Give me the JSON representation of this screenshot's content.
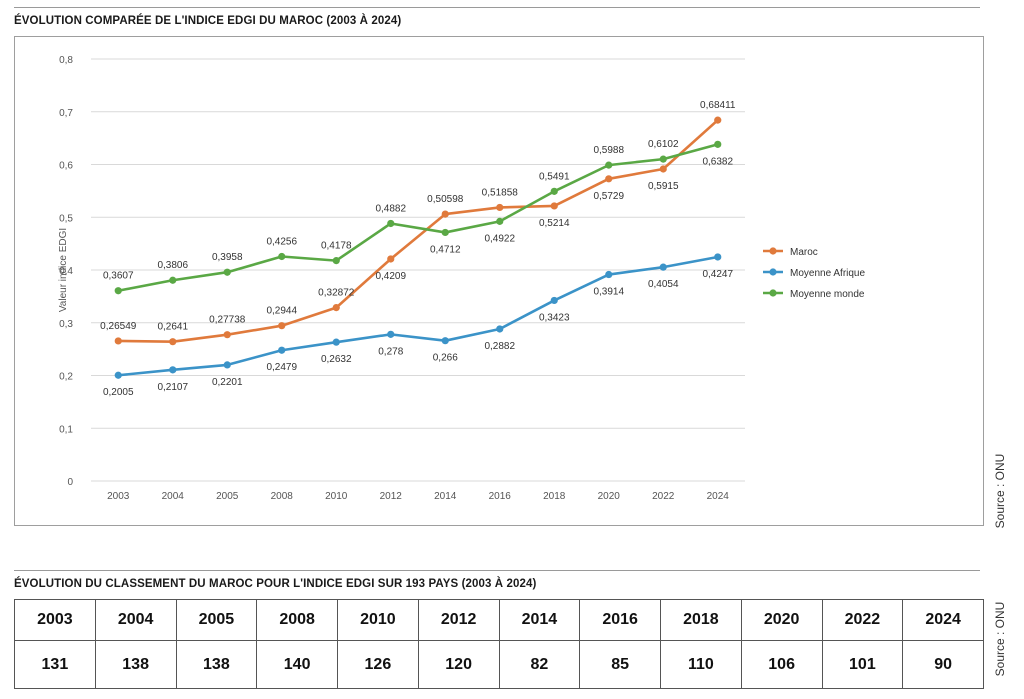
{
  "chart_title": "ÉVOLUTION COMPARÉE DE L'INDICE EDGI DU MAROC (2003 À 2024)",
  "table_title": "ÉVOLUTION DU CLASSEMENT DU MAROC POUR L'INDICE EDGI SUR 193 PAYS (2003 À 2024)",
  "source_text": "Source : ONU",
  "chart_data": {
    "type": "line",
    "title": "ÉVOLUTION COMPARÉE DE L'INDICE EDGI DU MAROC (2003 À 2024)",
    "xlabel": "",
    "ylabel": "Valeur indice EDGI",
    "ylim": [
      0,
      0.8
    ],
    "yticks": [
      "0",
      "0,1",
      "0,2",
      "0,3",
      "0,4",
      "0,5",
      "0,6",
      "0,7",
      "0,8"
    ],
    "categories": [
      "2003",
      "2004",
      "2005",
      "2008",
      "2010",
      "2012",
      "2014",
      "2016",
      "2018",
      "2020",
      "2022",
      "2024"
    ],
    "grid": true,
    "legend_position": "right",
    "series": [
      {
        "name": "Maroc",
        "color": "#e07a3c",
        "values": [
          0.26549,
          0.2641,
          0.27738,
          0.2944,
          0.32872,
          0.4209,
          0.50598,
          0.51858,
          0.5214,
          0.5729,
          0.5915,
          0.68411
        ],
        "labels": [
          "0,26549",
          "0,2641",
          "0,27738",
          "0,2944",
          "0,32872",
          "0,4209",
          "0,50598",
          "0,51858",
          "0,5214",
          "0,5729",
          "0,5915",
          "0,68411"
        ],
        "label_pos": [
          "above",
          "above",
          "above",
          "above",
          "above",
          "below",
          "above",
          "above",
          "below",
          "below",
          "below",
          "above"
        ]
      },
      {
        "name": "Moyenne Afrique",
        "color": "#3b93c8",
        "values": [
          0.2005,
          0.2107,
          0.2201,
          0.2479,
          0.2632,
          0.278,
          0.266,
          0.2882,
          0.3423,
          0.3914,
          0.4054,
          0.4247
        ],
        "labels": [
          "0,2005",
          "0,2107",
          "0,2201",
          "0,2479",
          "0,2632",
          "0,278",
          "0,266",
          "0,2882",
          "0,3423",
          "0,3914",
          "0,4054",
          "0,4247"
        ],
        "label_pos": [
          "below",
          "below",
          "below",
          "below",
          "below",
          "below",
          "below",
          "below",
          "below",
          "below",
          "below",
          "below"
        ]
      },
      {
        "name": "Moyenne monde",
        "color": "#5aa845",
        "values": [
          0.3607,
          0.3806,
          0.3958,
          0.4256,
          0.4178,
          0.4882,
          0.4712,
          0.4922,
          0.5491,
          0.5988,
          0.6102,
          0.6382
        ],
        "labels": [
          "0,3607",
          "0,3806",
          "0,3958",
          "0,4256",
          "0,4178",
          "0,4882",
          "0,4712",
          "0,4922",
          "0,5491",
          "0,5988",
          "0,6102",
          "0,6382"
        ],
        "label_pos": [
          "above",
          "above",
          "above",
          "above",
          "above",
          "above",
          "below",
          "below",
          "above",
          "above",
          "above",
          "below"
        ]
      }
    ]
  },
  "ranking_table": {
    "years": [
      "2003",
      "2004",
      "2005",
      "2008",
      "2010",
      "2012",
      "2014",
      "2016",
      "2018",
      "2020",
      "2022",
      "2024"
    ],
    "ranks": [
      "131",
      "138",
      "138",
      "140",
      "126",
      "120",
      "82",
      "85",
      "110",
      "106",
      "101",
      "90"
    ]
  }
}
